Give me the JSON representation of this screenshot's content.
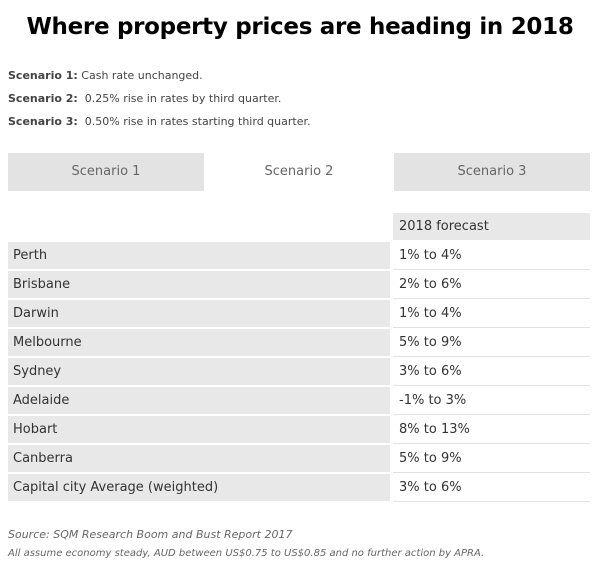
{
  "title": "Where property prices are heading in 2018",
  "scenarios": [
    {
      "label": "Scenario 1:",
      "text": " Cash rate unchanged."
    },
    {
      "label": "Scenario 2:",
      "text": "  0.25% rise in rates by third quarter."
    },
    {
      "label": "Scenario 3:",
      "text": "  0.50% rise in rates starting third quarter."
    }
  ],
  "tabs": [
    {
      "label": "Scenario 1"
    },
    {
      "label": "Scenario 2",
      "active": true
    },
    {
      "label": "Scenario 3"
    }
  ],
  "table": {
    "header": "2018 forecast",
    "rows": [
      {
        "city": "Perth",
        "forecast": "1% to 4%"
      },
      {
        "city": "Brisbane",
        "forecast": "2% to 6%"
      },
      {
        "city": "Darwin",
        "forecast": "1% to 4%"
      },
      {
        "city": "Melbourne",
        "forecast": "5% to 9%"
      },
      {
        "city": "Sydney",
        "forecast": "3% to 6%"
      },
      {
        "city": "Adelaide",
        "forecast": "-1% to 3%"
      },
      {
        "city": "Hobart",
        "forecast": "8% to 13%"
      },
      {
        "city": "Canberra",
        "forecast": "5% to 9%"
      },
      {
        "city": "Capital city Average (weighted)",
        "forecast": "3% to 6%"
      }
    ]
  },
  "source": "Source: SQM Research Boom and Bust Report 2017",
  "note": "All assume economy steady, AUD between US$0.75 to US$0.85 and no further action by APRA."
}
